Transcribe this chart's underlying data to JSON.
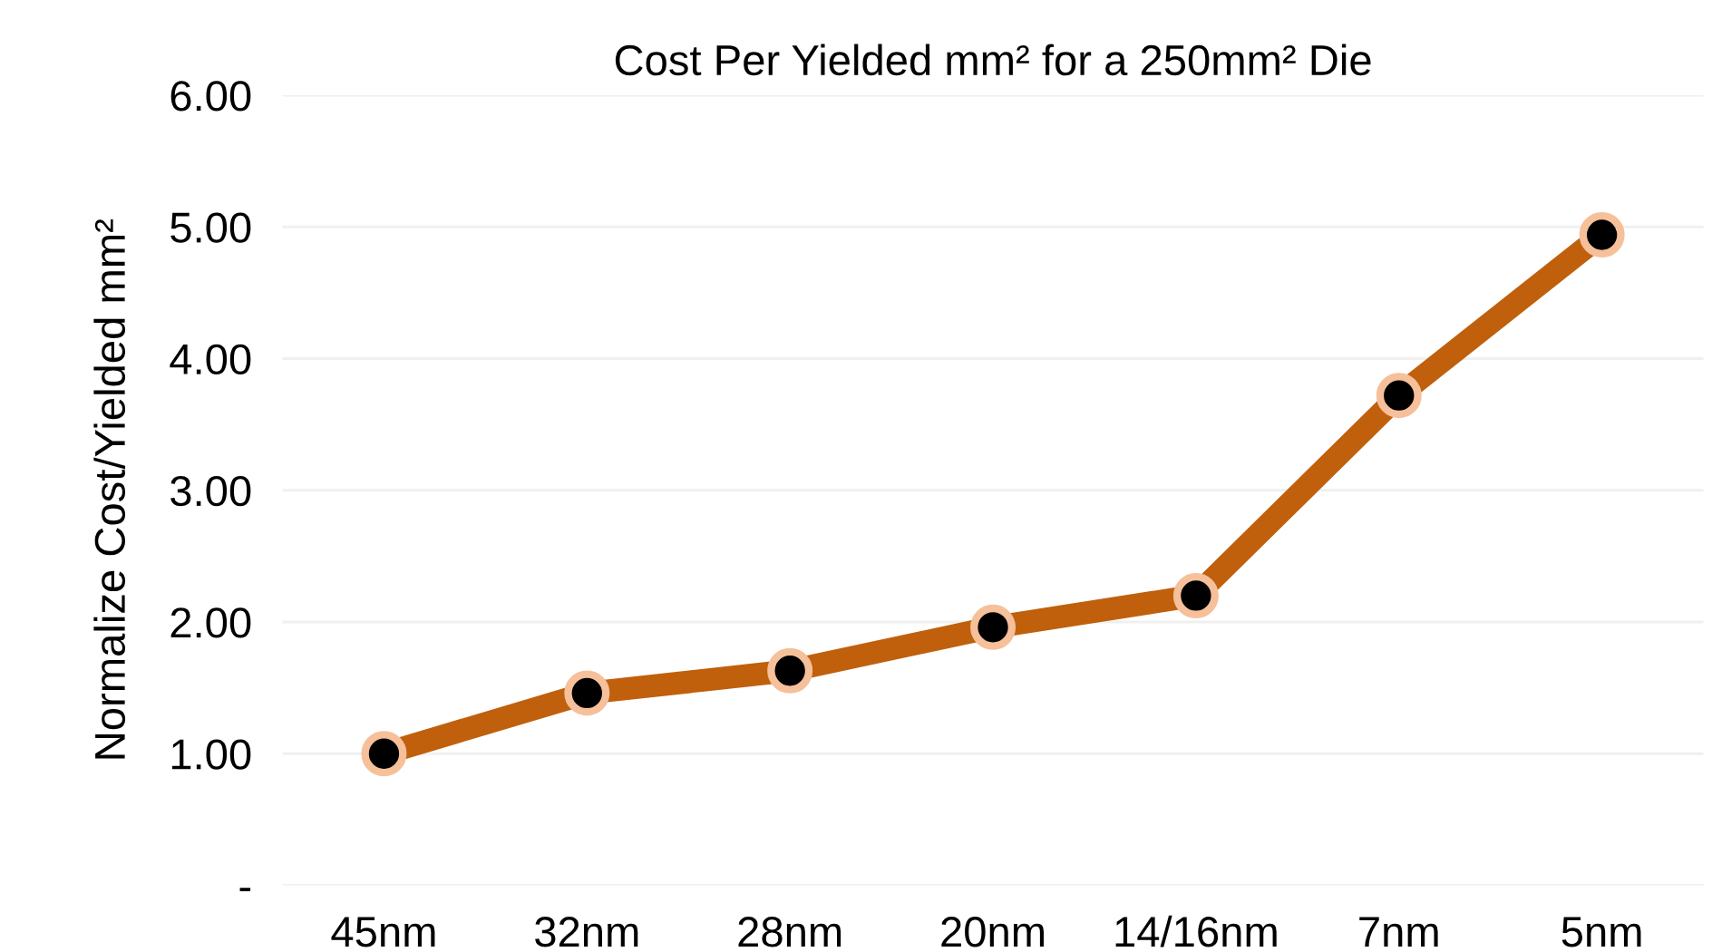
{
  "chart_data": {
    "type": "line",
    "title": "Cost Per Yielded mm² for a 250mm² Die",
    "ylabel": "Normalize Cost/Yielded mm²",
    "categories": [
      "45nm",
      "32nm",
      "28nm",
      "20nm",
      "14/16nm",
      "7nm",
      "5nm"
    ],
    "series": [
      {
        "color": "#c0600c",
        "values": [
          1.0,
          1.46,
          1.63,
          1.96,
          2.2,
          3.72,
          4.94
        ]
      }
    ],
    "ylim": [
      0,
      6
    ],
    "yticks": [
      {
        "value": 0,
        "label": "-"
      },
      {
        "value": 1,
        "label": "1.00"
      },
      {
        "value": 2,
        "label": "2.00"
      },
      {
        "value": 3,
        "label": "3.00"
      },
      {
        "value": 4,
        "label": "4.00"
      },
      {
        "value": 5,
        "label": "5.00"
      },
      {
        "value": 6,
        "label": "6.00"
      }
    ],
    "grid": "y",
    "marker": "circle",
    "line_style": "solid"
  }
}
